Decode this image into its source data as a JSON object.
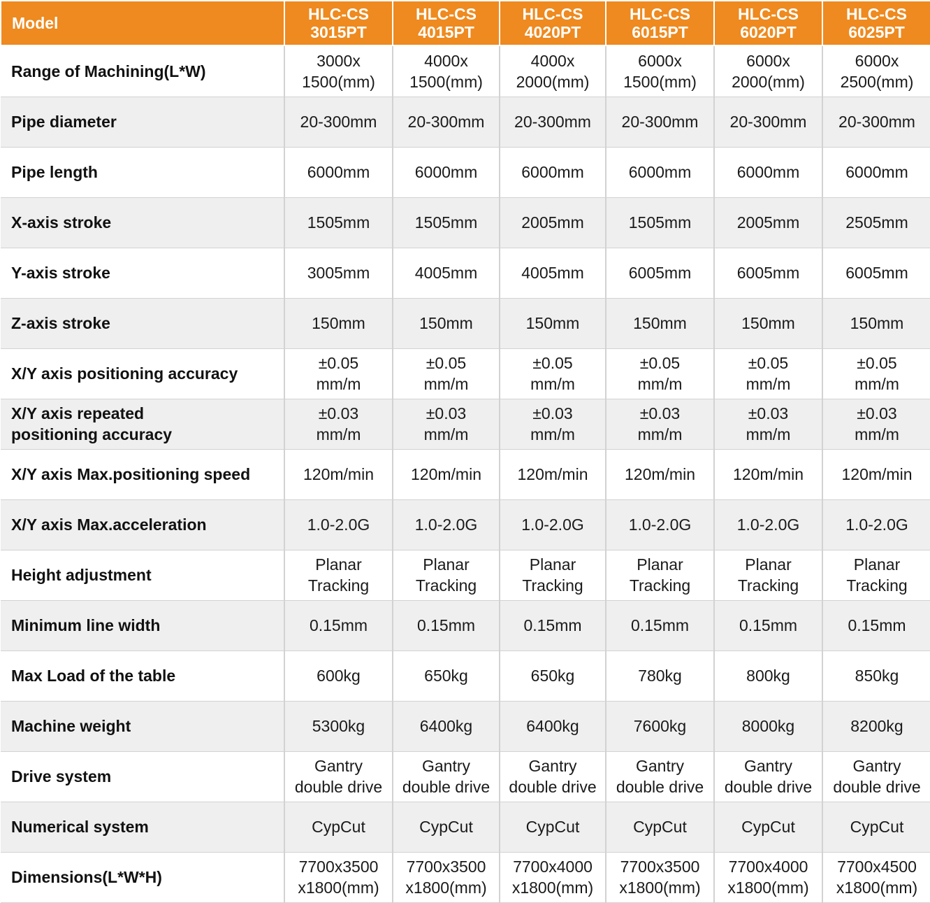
{
  "header": {
    "label": "Model",
    "models": [
      "HLC-CS\n3015PT",
      "HLC-CS\n4015PT",
      "HLC-CS\n4020PT",
      "HLC-CS\n6015PT",
      "HLC-CS\n6020PT",
      "HLC-CS\n6025PT"
    ]
  },
  "rows": [
    {
      "label": "Range of Machining(L*W)",
      "values": [
        "3000x\n1500(mm)",
        "4000x\n1500(mm)",
        "4000x\n2000(mm)",
        "6000x\n1500(mm)",
        "6000x\n2000(mm)",
        "6000x\n2500(mm)"
      ]
    },
    {
      "label": "Pipe diameter",
      "values": [
        "20-300mm",
        "20-300mm",
        "20-300mm",
        "20-300mm",
        "20-300mm",
        "20-300mm"
      ]
    },
    {
      "label": "Pipe length",
      "values": [
        "6000mm",
        "6000mm",
        "6000mm",
        "6000mm",
        "6000mm",
        "6000mm"
      ]
    },
    {
      "label": "X-axis stroke",
      "values": [
        "1505mm",
        "1505mm",
        "2005mm",
        "1505mm",
        "2005mm",
        "2505mm"
      ]
    },
    {
      "label": "Y-axis stroke",
      "values": [
        "3005mm",
        "4005mm",
        "4005mm",
        "6005mm",
        "6005mm",
        "6005mm"
      ]
    },
    {
      "label": "Z-axis stroke",
      "values": [
        "150mm",
        "150mm",
        "150mm",
        "150mm",
        "150mm",
        "150mm"
      ]
    },
    {
      "label": "X/Y axis positioning accuracy",
      "values": [
        "±0.05\nmm/m",
        "±0.05\nmm/m",
        "±0.05\nmm/m",
        "±0.05\nmm/m",
        "±0.05\nmm/m",
        "±0.05\nmm/m"
      ]
    },
    {
      "label": "X/Y axis repeated\npositioning accuracy",
      "values": [
        "±0.03\nmm/m",
        "±0.03\nmm/m",
        "±0.03\nmm/m",
        "±0.03\nmm/m",
        "±0.03\nmm/m",
        "±0.03\nmm/m"
      ]
    },
    {
      "label": "X/Y axis Max.positioning speed",
      "values": [
        "120m/min",
        "120m/min",
        "120m/min",
        "120m/min",
        "120m/min",
        "120m/min"
      ]
    },
    {
      "label": "X/Y axis Max.acceleration",
      "values": [
        "1.0-2.0G",
        "1.0-2.0G",
        "1.0-2.0G",
        "1.0-2.0G",
        "1.0-2.0G",
        "1.0-2.0G"
      ]
    },
    {
      "label": "Height adjustment",
      "values": [
        "Planar\nTracking",
        "Planar\nTracking",
        "Planar\nTracking",
        "Planar\nTracking",
        "Planar\nTracking",
        "Planar\nTracking"
      ]
    },
    {
      "label": "Minimum line width",
      "values": [
        "0.15mm",
        "0.15mm",
        "0.15mm",
        "0.15mm",
        "0.15mm",
        "0.15mm"
      ]
    },
    {
      "label": "Max Load of the table",
      "values": [
        "600kg",
        "650kg",
        "650kg",
        "780kg",
        "800kg",
        "850kg"
      ]
    },
    {
      "label": "Machine weight",
      "values": [
        "5300kg",
        "6400kg",
        "6400kg",
        "7600kg",
        "8000kg",
        "8200kg"
      ]
    },
    {
      "label": "Drive system",
      "values": [
        "Gantry\ndouble drive",
        "Gantry\ndouble drive",
        "Gantry\ndouble drive",
        "Gantry\ndouble drive",
        "Gantry\ndouble drive",
        "Gantry\ndouble drive"
      ]
    },
    {
      "label": "Numerical system",
      "values": [
        "CypCut",
        "CypCut",
        "CypCut",
        "CypCut",
        "CypCut",
        "CypCut"
      ]
    },
    {
      "label": "Dimensions(L*W*H)",
      "values": [
        "7700x3500\nx1800(mm)",
        "7700x3500\nx1800(mm)",
        "7700x4000\nx1800(mm)",
        "7700x3500\nx1800(mm)",
        "7700x4000\nx1800(mm)",
        "7700x4500\nx1800(mm)"
      ]
    }
  ],
  "colors": {
    "header_bg": "#ee8a1f",
    "header_text": "#ffffff",
    "stripe_bg": "#efefef",
    "grid": "#d2d2d2"
  }
}
